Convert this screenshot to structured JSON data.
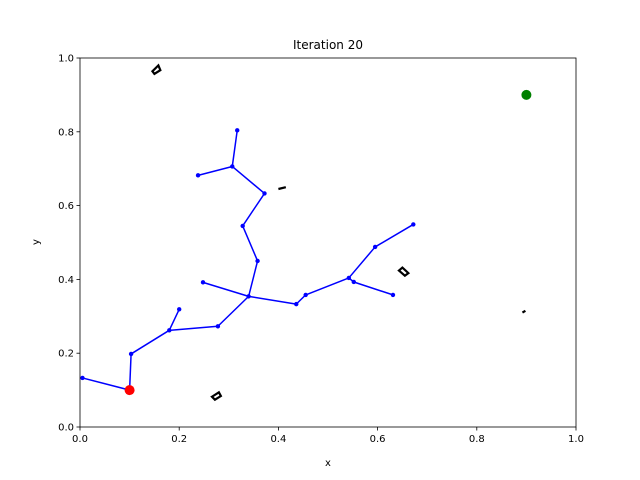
{
  "chart_data": {
    "type": "scatter",
    "title": "Iteration 20",
    "xlabel": "x",
    "ylabel": "y",
    "xlim": [
      0.0,
      1.0
    ],
    "ylim": [
      0.0,
      1.0
    ],
    "xticks": [
      "0.0",
      "0.2",
      "0.4",
      "0.6",
      "0.8",
      "1.0"
    ],
    "yticks": [
      "0.0",
      "0.2",
      "0.4",
      "0.6",
      "0.8",
      "1.0"
    ],
    "grid": false,
    "colors": {
      "tree": "#0000ff",
      "start": "#ff0000",
      "goal": "#008000",
      "obstacle": "#000000"
    },
    "start": {
      "x": 0.1,
      "y": 0.1
    },
    "goal": {
      "x": 0.9,
      "y": 0.9
    },
    "nodes": [
      {
        "x": 0.1,
        "y": 0.1
      },
      {
        "x": 0.005,
        "y": 0.133
      },
      {
        "x": 0.103,
        "y": 0.198
      },
      {
        "x": 0.18,
        "y": 0.262
      },
      {
        "x": 0.2,
        "y": 0.319
      },
      {
        "x": 0.278,
        "y": 0.273
      },
      {
        "x": 0.34,
        "y": 0.354
      },
      {
        "x": 0.248,
        "y": 0.392
      },
      {
        "x": 0.358,
        "y": 0.45
      },
      {
        "x": 0.328,
        "y": 0.545
      },
      {
        "x": 0.372,
        "y": 0.633
      },
      {
        "x": 0.307,
        "y": 0.706
      },
      {
        "x": 0.238,
        "y": 0.682
      },
      {
        "x": 0.317,
        "y": 0.804
      },
      {
        "x": 0.436,
        "y": 0.333
      },
      {
        "x": 0.455,
        "y": 0.358
      },
      {
        "x": 0.542,
        "y": 0.404
      },
      {
        "x": 0.552,
        "y": 0.393
      },
      {
        "x": 0.631,
        "y": 0.358
      },
      {
        "x": 0.595,
        "y": 0.488
      },
      {
        "x": 0.672,
        "y": 0.549
      }
    ],
    "edges": [
      [
        0,
        1
      ],
      [
        0,
        2
      ],
      [
        2,
        3
      ],
      [
        3,
        4
      ],
      [
        3,
        5
      ],
      [
        5,
        6
      ],
      [
        6,
        7
      ],
      [
        6,
        8
      ],
      [
        8,
        9
      ],
      [
        9,
        10
      ],
      [
        10,
        11
      ],
      [
        11,
        12
      ],
      [
        11,
        13
      ],
      [
        6,
        14
      ],
      [
        14,
        15
      ],
      [
        15,
        16
      ],
      [
        16,
        17
      ],
      [
        17,
        18
      ],
      [
        16,
        19
      ],
      [
        19,
        20
      ]
    ],
    "obstacles": [
      {
        "x1": 0.146,
        "y1": 0.964,
        "x2": 0.158,
        "y2": 0.98,
        "x3": 0.162,
        "y3": 0.967,
        "x4": 0.15,
        "y4": 0.957
      },
      {
        "x1": 0.4,
        "y1": 0.645,
        "x2": 0.415,
        "y2": 0.65
      },
      {
        "x1": 0.643,
        "y1": 0.424,
        "x2": 0.65,
        "y2": 0.432,
        "x3": 0.662,
        "y3": 0.417,
        "x4": 0.655,
        "y4": 0.41
      },
      {
        "x1": 0.266,
        "y1": 0.082,
        "x2": 0.28,
        "y2": 0.094,
        "x3": 0.284,
        "y3": 0.084,
        "x4": 0.272,
        "y4": 0.074
      },
      {
        "x1": 0.892,
        "y1": 0.31,
        "x2": 0.898,
        "y2": 0.315
      }
    ]
  }
}
